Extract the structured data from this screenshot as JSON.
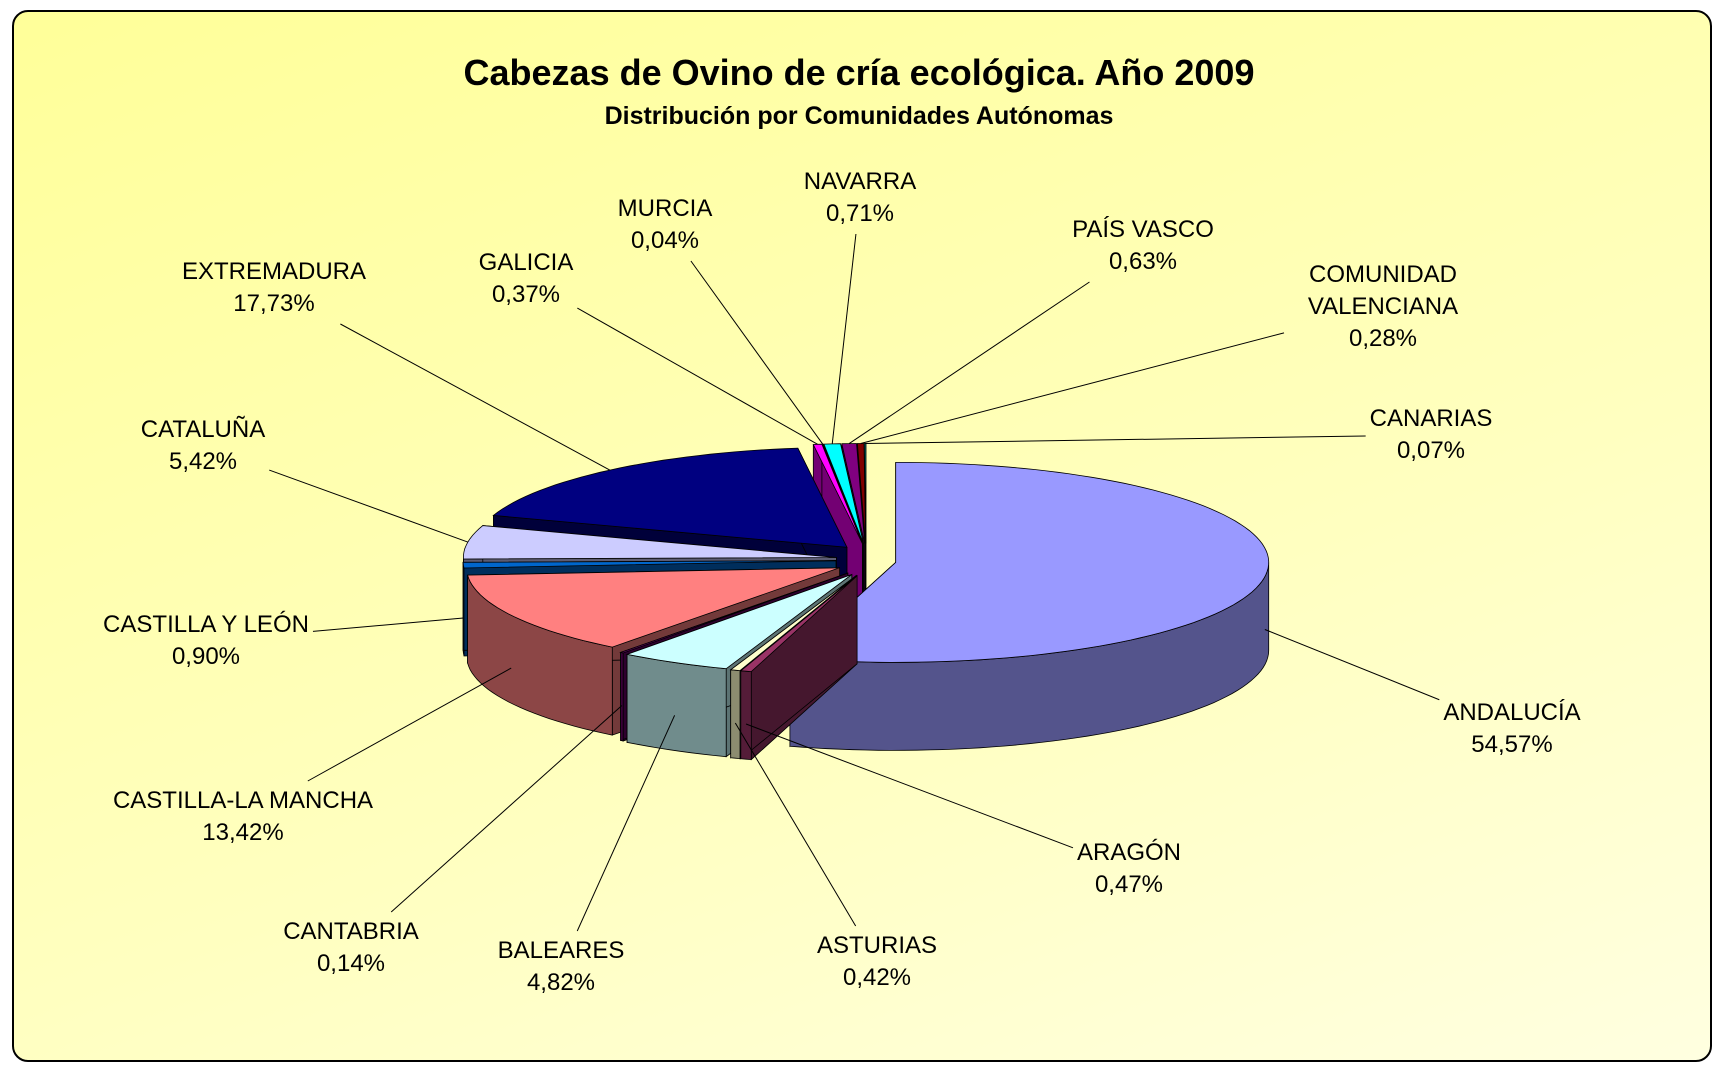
{
  "chart_data": {
    "type": "pie3d",
    "title": "Cabezas de Ovino de cría ecológica. Año 2009",
    "subtitle": "Distribución por Comunidades Autónomas",
    "categories": [
      "ANDALUCÍA",
      "ARAGÓN",
      "ASTURIAS",
      "BALEARES",
      "CANTABRIA",
      "CASTILLA-LA MANCHA",
      "CASTILLA Y LEÓN",
      "CATALUÑA",
      "EXTREMADURA",
      "GALICIA",
      "MURCIA",
      "NAVARRA",
      "PAÍS VASCO",
      "COMUNIDAD VALENCIANA",
      "CANARIAS"
    ],
    "values": [
      54.57,
      0.47,
      0.42,
      4.82,
      0.14,
      13.42,
      0.9,
      5.42,
      17.73,
      0.37,
      0.04,
      0.71,
      0.63,
      0.28,
      0.07
    ],
    "value_labels": [
      "54,57%",
      "0,47%",
      "0,42%",
      "4,82%",
      "0,14%",
      "13,42%",
      "0,90%",
      "5,42%",
      "17,73%",
      "0,37%",
      "0,04%",
      "0,71%",
      "0,63%",
      "0,28%",
      "0,07%"
    ],
    "colors": [
      "#9999ff",
      "#993366",
      "#ffffcc",
      "#ccffff",
      "#660066",
      "#ff8080",
      "#0066cc",
      "#ccccff",
      "#000080",
      "#ff00ff",
      "#ffff00",
      "#00ffff",
      "#800080",
      "#800000",
      "#008080"
    ]
  }
}
